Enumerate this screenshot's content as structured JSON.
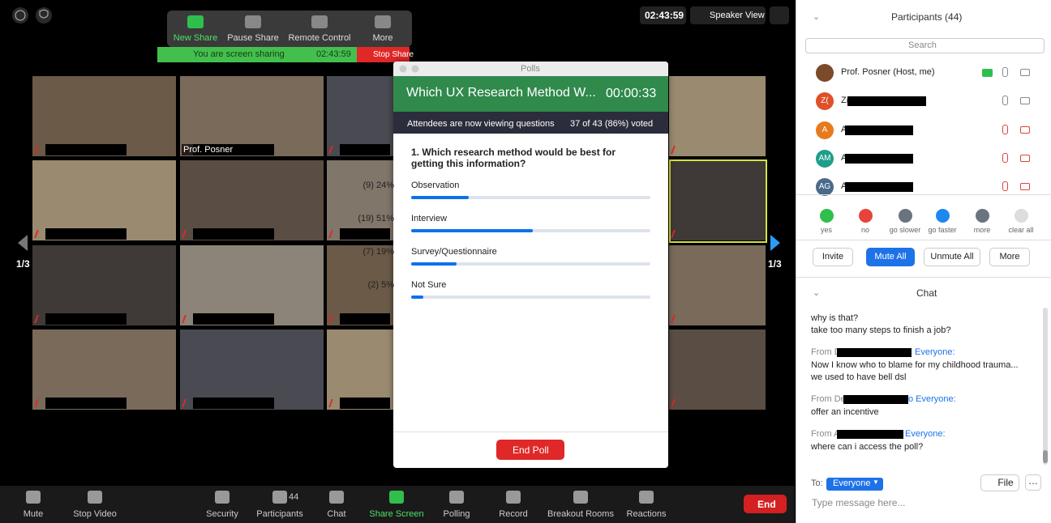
{
  "share_toolbar": {
    "buttons": [
      "New Share",
      "Pause Share",
      "Remote Control",
      "More"
    ],
    "status": "You are screen sharing",
    "timer": "02:43:59",
    "stop": "Stop Share"
  },
  "meeting_timer": "02:43:59",
  "view_button": "Speaker View",
  "gallery": {
    "speaker_name": "Prof. Posner",
    "page_left": "1/3",
    "page_right": "1/3"
  },
  "poll": {
    "window_title": "Polls",
    "title": "Which UX Research Method W...",
    "timer": "00:00:33",
    "status": "Attendees are now viewing questions",
    "voted": "37 of 43 (86%) voted",
    "question": "1. Which research method would be best for getting this information?",
    "options": [
      {
        "label": "Observation",
        "result": "(9) 24%",
        "percent": 24
      },
      {
        "label": "Interview",
        "result": "(19) 51%",
        "percent": 51
      },
      {
        "label": "Survey/Questionnaire",
        "result": "(7) 19%",
        "percent": 19
      },
      {
        "label": "Not Sure",
        "result": "(2) 5%",
        "percent": 5
      }
    ],
    "end_button": "End Poll"
  },
  "participants": {
    "title": "Participants (44)",
    "search": "Search",
    "list": [
      {
        "name": "Prof. Posner (Host, me)"
      },
      {
        "initials": "Z(",
        "name": "Z("
      },
      {
        "initials": "A",
        "name": "A"
      },
      {
        "initials": "AM",
        "name": "A"
      },
      {
        "initials": "AG",
        "name": "A"
      }
    ],
    "reactions": [
      "yes",
      "no",
      "go slower",
      "go faster",
      "more",
      "clear all"
    ],
    "buttons": [
      "Invite",
      "Mute All",
      "Unmute All",
      "More"
    ]
  },
  "chat": {
    "title": "Chat",
    "messages": [
      {
        "lines": [
          "why is that?",
          "take too many steps to finish a job?"
        ]
      },
      {
        "from": "From D",
        "to": "Everyone:",
        "lines": [
          "Now I know who to blame for my childhood trauma...",
          "we used to have bell dsl"
        ]
      },
      {
        "from": "From De",
        "to": "o Everyone:",
        "lines": [
          "offer an incentive"
        ]
      },
      {
        "from": "From A",
        "to": "Everyone:",
        "lines": [
          "where can i access the poll?"
        ]
      }
    ],
    "to_label": "To:",
    "recipient": "Everyone",
    "file_button": "File",
    "input_placeholder": "Type message here..."
  },
  "toolbar": {
    "items": [
      "Mute",
      "Stop Video",
      "Security",
      "Participants",
      "Chat",
      "Share Screen",
      "Polling",
      "Record",
      "Breakout Rooms",
      "Reactions"
    ],
    "participant_count": 44,
    "end_button": "End"
  }
}
